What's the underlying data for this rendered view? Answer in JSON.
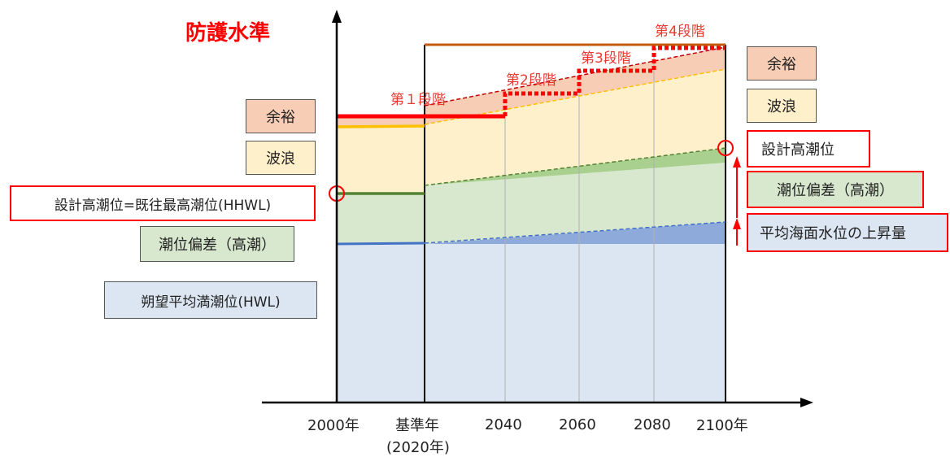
{
  "title": "防護水準",
  "colors": {
    "accent_red": "#ff0000",
    "stage_red": "#e8392f",
    "hwl_fill": "#dce6f2",
    "surge_fill": "#d8e8cf",
    "wave_fill": "#fff0cc",
    "margin_fill": "#f7cdb6",
    "slr_fill": "#8eaadb",
    "surge_rise_fill": "#a9d08e",
    "border_orange": "#c55a11"
  },
  "left_labels": {
    "margin": "余裕",
    "wave": "波浪",
    "design_tide": "設計高潮位=既往最高潮位(HHWL)",
    "surge": "潮位偏差（高潮）",
    "hwl": "朔望平均満潮位(HWL)"
  },
  "right_labels": {
    "margin": "余裕",
    "wave": "波浪",
    "design_tide": "設計高潮位",
    "surge": "潮位偏差（高潮）",
    "sea_level_rise": "平均海面水位の上昇量"
  },
  "stages": {
    "s1": "第１段階",
    "s2": "第2段階",
    "s3": "第3段階",
    "s4": "第4段階"
  },
  "x_axis": {
    "t2000": "2000年",
    "base": "基準年",
    "base_sub": "(2020年)",
    "t2040": "2040",
    "t2060": "2060",
    "t2080": "2080",
    "t2100": "2100年"
  }
}
